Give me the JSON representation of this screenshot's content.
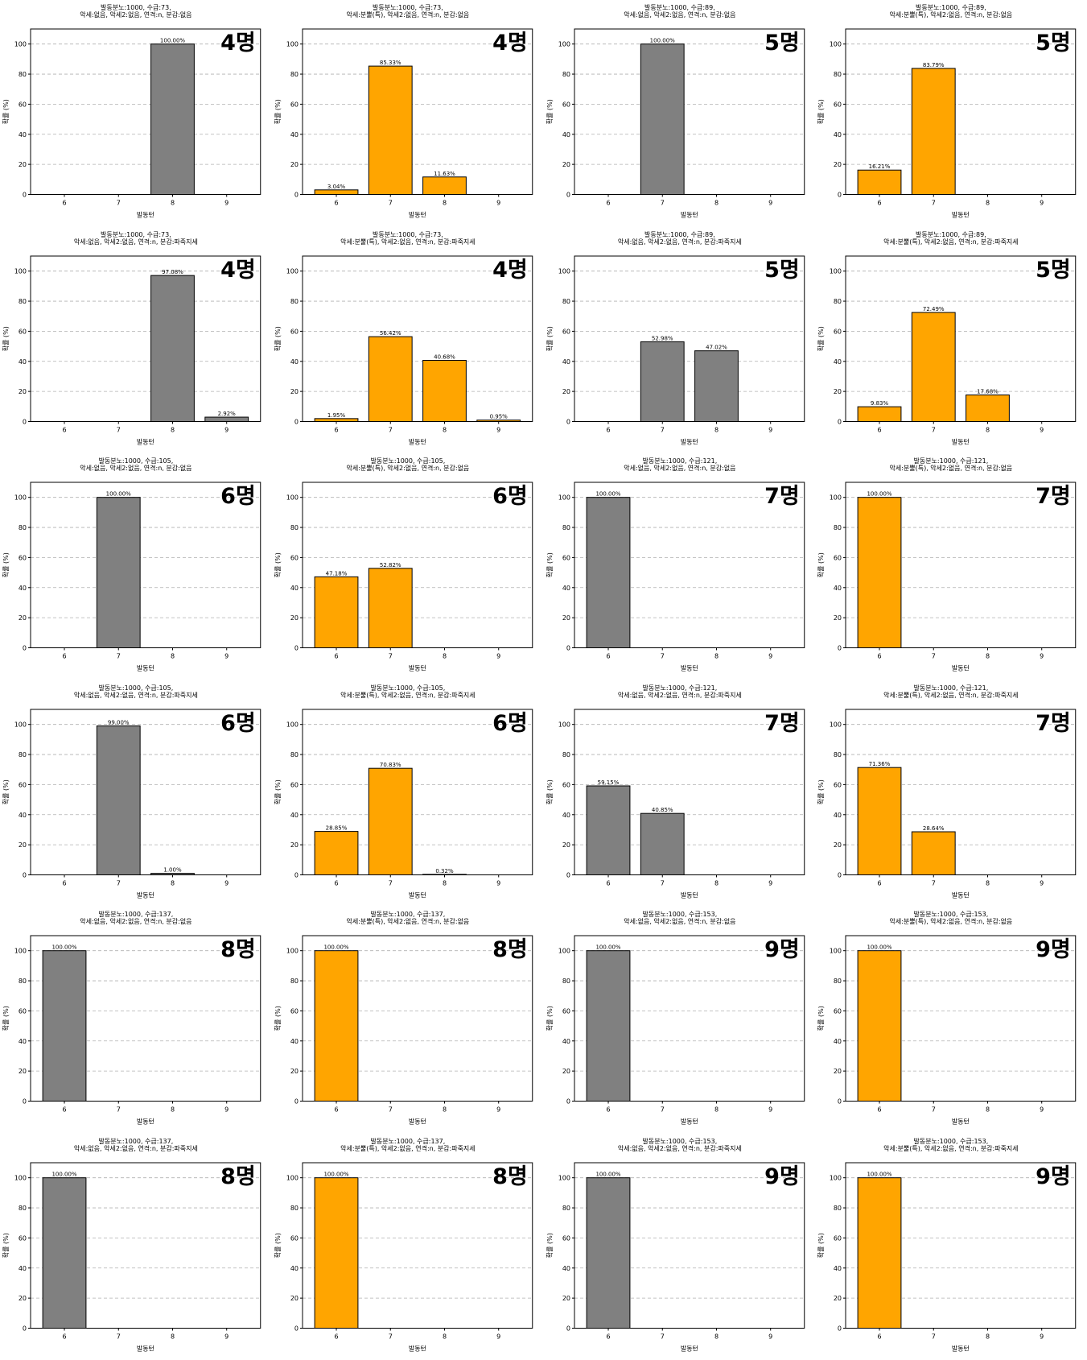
{
  "common": {
    "xlabel": "발동턴",
    "ylabel": "확률 (%)",
    "categories": [
      "6",
      "7",
      "8",
      "9"
    ],
    "yticks": [
      "0",
      "20",
      "40",
      "60",
      "80",
      "100"
    ],
    "ylim": [
      0,
      110
    ],
    "grid": "y-dashed",
    "colors": {
      "gray": "#808080",
      "orange": "#FFA500"
    }
  },
  "chart_data": [
    {
      "type": "bar",
      "title": [
        "발동분노:1000, 수급:73,",
        "악세:없음, 악세2:없음, 연격:n, 분감:없음"
      ],
      "count_label": "4명",
      "color": "gray",
      "values": [
        0,
        0,
        100,
        0
      ],
      "value_labels": [
        "",
        "",
        "100.00%",
        ""
      ]
    },
    {
      "type": "bar",
      "title": [
        "발동분노:1000, 수급:73,",
        "악세:분뿔(특), 악세2:없음, 연격:n, 분감:없음"
      ],
      "count_label": "4명",
      "color": "orange",
      "values": [
        3.04,
        85.33,
        11.63,
        0
      ],
      "value_labels": [
        "3.04%",
        "85.33%",
        "11.63%",
        ""
      ]
    },
    {
      "type": "bar",
      "title": [
        "발동분노:1000, 수급:89,",
        "악세:없음, 악세2:없음, 연격:n, 분감:없음"
      ],
      "count_label": "5명",
      "color": "gray",
      "values": [
        0,
        100,
        0,
        0
      ],
      "value_labels": [
        "",
        "100.00%",
        "",
        ""
      ]
    },
    {
      "type": "bar",
      "title": [
        "발동분노:1000, 수급:89,",
        "악세:분뿔(특), 악세2:없음, 연격:n, 분감:없음"
      ],
      "count_label": "5명",
      "color": "orange",
      "values": [
        16.21,
        83.79,
        0,
        0
      ],
      "value_labels": [
        "16.21%",
        "83.79%",
        "",
        ""
      ]
    },
    {
      "type": "bar",
      "title": [
        "발동분노:1000, 수급:73,",
        "악세:없음, 악세2:없음, 연격:n, 분감:파죽지세"
      ],
      "count_label": "4명",
      "color": "gray",
      "values": [
        0,
        0,
        97.08,
        2.92
      ],
      "value_labels": [
        "",
        "",
        "97.08%",
        "2.92%"
      ]
    },
    {
      "type": "bar",
      "title": [
        "발동분노:1000, 수급:73,",
        "악세:분뿔(특), 악세2:없음, 연격:n, 분감:파죽지세"
      ],
      "count_label": "4명",
      "color": "orange",
      "values": [
        1.95,
        56.42,
        40.68,
        0.95
      ],
      "value_labels": [
        "1.95%",
        "56.42%",
        "40.68%",
        "0.95%"
      ]
    },
    {
      "type": "bar",
      "title": [
        "발동분노:1000, 수급:89,",
        "악세:없음, 악세2:없음, 연격:n, 분감:파죽지세"
      ],
      "count_label": "5명",
      "color": "gray",
      "values": [
        0,
        52.98,
        47.02,
        0
      ],
      "value_labels": [
        "",
        "52.98%",
        "47.02%",
        ""
      ]
    },
    {
      "type": "bar",
      "title": [
        "발동분노:1000, 수급:89,",
        "악세:분뿔(특), 악세2:없음, 연격:n, 분감:파죽지세"
      ],
      "count_label": "5명",
      "color": "orange",
      "values": [
        9.83,
        72.49,
        17.68,
        0
      ],
      "value_labels": [
        "9.83%",
        "72.49%",
        "17.68%",
        ""
      ]
    },
    {
      "type": "bar",
      "title": [
        "발동분노:1000, 수급:105,",
        "악세:없음, 악세2:없음, 연격:n, 분감:없음"
      ],
      "count_label": "6명",
      "color": "gray",
      "values": [
        0,
        100,
        0,
        0
      ],
      "value_labels": [
        "",
        "100.00%",
        "",
        ""
      ]
    },
    {
      "type": "bar",
      "title": [
        "발동분노:1000, 수급:105,",
        "악세:분뿔(특), 악세2:없음, 연격:n, 분감:없음"
      ],
      "count_label": "6명",
      "color": "orange",
      "values": [
        47.18,
        52.82,
        0,
        0
      ],
      "value_labels": [
        "47.18%",
        "52.82%",
        "",
        ""
      ]
    },
    {
      "type": "bar",
      "title": [
        "발동분노:1000, 수급:121,",
        "악세:없음, 악세2:없음, 연격:n, 분감:없음"
      ],
      "count_label": "7명",
      "color": "gray",
      "values": [
        100,
        0,
        0,
        0
      ],
      "value_labels": [
        "100.00%",
        "",
        "",
        ""
      ]
    },
    {
      "type": "bar",
      "title": [
        "발동분노:1000, 수급:121,",
        "악세:분뿔(특), 악세2:없음, 연격:n, 분감:없음"
      ],
      "count_label": "7명",
      "color": "orange",
      "values": [
        100,
        0,
        0,
        0
      ],
      "value_labels": [
        "100.00%",
        "",
        "",
        ""
      ]
    },
    {
      "type": "bar",
      "title": [
        "발동분노:1000, 수급:105,",
        "악세:없음, 악세2:없음, 연격:n, 분감:파죽지세"
      ],
      "count_label": "6명",
      "color": "gray",
      "values": [
        0,
        99,
        1,
        0
      ],
      "value_labels": [
        "",
        "99.00%",
        "1.00%",
        ""
      ]
    },
    {
      "type": "bar",
      "title": [
        "발동분노:1000, 수급:105,",
        "악세:분뿔(특), 악세2:없음, 연격:n, 분감:파죽지세"
      ],
      "count_label": "6명",
      "color": "orange",
      "values": [
        28.85,
        70.83,
        0.32,
        0
      ],
      "value_labels": [
        "28.85%",
        "70.83%",
        "0.32%",
        ""
      ]
    },
    {
      "type": "bar",
      "title": [
        "발동분노:1000, 수급:121,",
        "악세:없음, 악세2:없음, 연격:n, 분감:파죽지세"
      ],
      "count_label": "7명",
      "color": "gray",
      "values": [
        59.15,
        40.85,
        0,
        0
      ],
      "value_labels": [
        "59.15%",
        "40.85%",
        "",
        ""
      ]
    },
    {
      "type": "bar",
      "title": [
        "발동분노:1000, 수급:121,",
        "악세:분뿔(특), 악세2:없음, 연격:n, 분감:파죽지세"
      ],
      "count_label": "7명",
      "color": "orange",
      "values": [
        71.36,
        28.64,
        0,
        0
      ],
      "value_labels": [
        "71.36%",
        "28.64%",
        "",
        ""
      ]
    },
    {
      "type": "bar",
      "title": [
        "발동분노:1000, 수급:137,",
        "악세:없음, 악세2:없음, 연격:n, 분감:없음"
      ],
      "count_label": "8명",
      "color": "gray",
      "values": [
        100,
        0,
        0,
        0
      ],
      "value_labels": [
        "100.00%",
        "",
        "",
        ""
      ]
    },
    {
      "type": "bar",
      "title": [
        "발동분노:1000, 수급:137,",
        "악세:분뿔(특), 악세2:없음, 연격:n, 분감:없음"
      ],
      "count_label": "8명",
      "color": "orange",
      "values": [
        100,
        0,
        0,
        0
      ],
      "value_labels": [
        "100.00%",
        "",
        "",
        ""
      ]
    },
    {
      "type": "bar",
      "title": [
        "발동분노:1000, 수급:153,",
        "악세:없음, 악세2:없음, 연격:n, 분감:없음"
      ],
      "count_label": "9명",
      "color": "gray",
      "values": [
        100,
        0,
        0,
        0
      ],
      "value_labels": [
        "100.00%",
        "",
        "",
        ""
      ]
    },
    {
      "type": "bar",
      "title": [
        "발동분노:1000, 수급:153,",
        "악세:분뿔(특), 악세2:없음, 연격:n, 분감:없음"
      ],
      "count_label": "9명",
      "color": "orange",
      "values": [
        100,
        0,
        0,
        0
      ],
      "value_labels": [
        "100.00%",
        "",
        "",
        ""
      ]
    },
    {
      "type": "bar",
      "title": [
        "발동분노:1000, 수급:137,",
        "악세:없음, 악세2:없음, 연격:n, 분감:파죽지세"
      ],
      "count_label": "8명",
      "color": "gray",
      "values": [
        100,
        0,
        0,
        0
      ],
      "value_labels": [
        "100.00%",
        "",
        "",
        ""
      ]
    },
    {
      "type": "bar",
      "title": [
        "발동분노:1000, 수급:137,",
        "악세:분뿔(특), 악세2:없음, 연격:n, 분감:파죽지세"
      ],
      "count_label": "8명",
      "color": "orange",
      "values": [
        100,
        0,
        0,
        0
      ],
      "value_labels": [
        "100.00%",
        "",
        "",
        ""
      ]
    },
    {
      "type": "bar",
      "title": [
        "발동분노:1000, 수급:153,",
        "악세:없음, 악세2:없음, 연격:n, 분감:파죽지세"
      ],
      "count_label": "9명",
      "color": "gray",
      "values": [
        100,
        0,
        0,
        0
      ],
      "value_labels": [
        "100.00%",
        "",
        "",
        ""
      ]
    },
    {
      "type": "bar",
      "title": [
        "발동분노:1000, 수급:153,",
        "악세:분뿔(특), 악세2:없음, 연격:n, 분감:파죽지세"
      ],
      "count_label": "9명",
      "color": "orange",
      "values": [
        100,
        0,
        0,
        0
      ],
      "value_labels": [
        "100.00%",
        "",
        "",
        ""
      ]
    }
  ]
}
